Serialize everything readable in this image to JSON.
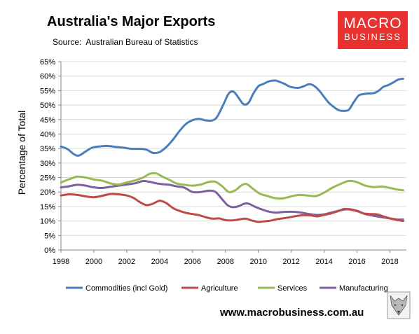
{
  "header": {
    "title": "Australia's Major Exports",
    "source_label": "Source:",
    "source_value": "Australian Bureau of Statistics"
  },
  "logo": {
    "line1": "MACRO",
    "line2": "BUSINESS",
    "color": "#e8322f"
  },
  "footer": {
    "url": "www.macrobusiness.com.au"
  },
  "chart_data": {
    "type": "line",
    "ylabel": "Percentage of Total",
    "xlabel": "",
    "xlim": [
      1998,
      2019
    ],
    "ylim": [
      0,
      65
    ],
    "y_ticks": [
      "0%",
      "5%",
      "10%",
      "15%",
      "20%",
      "25%",
      "30%",
      "35%",
      "40%",
      "45%",
      "50%",
      "55%",
      "60%",
      "65%"
    ],
    "x_ticks": [
      "1998",
      "2000",
      "2002",
      "2004",
      "2006",
      "2008",
      "2010",
      "2012",
      "2014",
      "2016",
      "2018"
    ],
    "grid": "horizontal",
    "legend_position": "bottom",
    "series": [
      {
        "name": "Commodities (incl Gold)",
        "color": "#4a7ebb",
        "x": [
          1998.0,
          1998.4,
          1998.8,
          1999.1,
          1999.5,
          1999.9,
          2000.3,
          2000.8,
          2001.3,
          2001.8,
          2002.3,
          2002.8,
          2003.2,
          2003.6,
          2004.0,
          2004.4,
          2004.8,
          2005.2,
          2005.6,
          2006.0,
          2006.4,
          2006.8,
          2007.2,
          2007.5,
          2007.9,
          2008.2,
          2008.5,
          2008.8,
          2009.1,
          2009.4,
          2009.7,
          2010.0,
          2010.3,
          2010.6,
          2011.0,
          2011.3,
          2011.6,
          2011.9,
          2012.2,
          2012.5,
          2012.8,
          2013.1,
          2013.4,
          2013.7,
          2014.0,
          2014.3,
          2014.6,
          2014.9,
          2015.2,
          2015.5,
          2015.8,
          2016.1,
          2016.4,
          2016.7,
          2017.0,
          2017.3,
          2017.6,
          2017.9,
          2018.2,
          2018.5,
          2018.8
        ],
        "values": [
          35.7,
          34.8,
          33.0,
          32.6,
          34.0,
          35.3,
          35.7,
          35.9,
          35.6,
          35.3,
          34.9,
          34.9,
          34.6,
          33.5,
          33.8,
          35.5,
          38.0,
          41.0,
          43.5,
          44.8,
          45.2,
          44.7,
          44.7,
          46.0,
          50.5,
          54.0,
          54.6,
          52.5,
          50.3,
          50.8,
          54.0,
          56.5,
          57.3,
          58.1,
          58.5,
          58.0,
          57.3,
          56.4,
          56.0,
          56.0,
          56.6,
          57.2,
          56.6,
          55.0,
          52.8,
          50.7,
          49.3,
          48.2,
          48.0,
          48.4,
          51.0,
          53.3,
          53.8,
          54.0,
          54.1,
          54.9,
          56.3,
          56.9,
          57.8,
          58.8,
          59.1
        ]
      },
      {
        "name": "Agriculture",
        "color": "#be4b48",
        "x": [
          1998.0,
          1998.5,
          1999.0,
          1999.5,
          2000.0,
          2000.5,
          2001.0,
          2001.5,
          2002.0,
          2002.4,
          2002.8,
          2003.2,
          2003.6,
          2004.0,
          2004.4,
          2004.8,
          2005.2,
          2005.6,
          2006.0,
          2006.4,
          2006.8,
          2007.2,
          2007.6,
          2008.0,
          2008.4,
          2008.8,
          2009.2,
          2009.6,
          2010.0,
          2010.4,
          2010.8,
          2011.2,
          2011.6,
          2012.0,
          2012.4,
          2012.8,
          2013.2,
          2013.6,
          2014.0,
          2014.4,
          2014.8,
          2015.2,
          2015.6,
          2016.0,
          2016.4,
          2016.8,
          2017.2,
          2017.6,
          2018.0,
          2018.4,
          2018.8
        ],
        "values": [
          18.8,
          19.2,
          19.0,
          18.5,
          18.2,
          18.7,
          19.3,
          19.2,
          18.8,
          18.0,
          16.5,
          15.5,
          16.0,
          17.0,
          16.2,
          14.5,
          13.5,
          12.8,
          12.4,
          12.0,
          11.3,
          10.8,
          10.9,
          10.3,
          10.2,
          10.5,
          10.8,
          10.2,
          9.7,
          9.9,
          10.2,
          10.7,
          11.0,
          11.4,
          11.8,
          12.0,
          11.9,
          11.6,
          12.1,
          12.6,
          13.3,
          14.1,
          13.9,
          13.4,
          12.6,
          12.4,
          12.3,
          11.6,
          10.9,
          10.4,
          10.0
        ]
      },
      {
        "name": "Services",
        "color": "#98b954",
        "x": [
          1998.0,
          1998.5,
          1999.0,
          1999.5,
          2000.0,
          2000.5,
          2001.0,
          2001.5,
          2002.0,
          2002.5,
          2003.0,
          2003.4,
          2003.8,
          2004.2,
          2004.6,
          2005.0,
          2005.5,
          2006.0,
          2006.5,
          2007.0,
          2007.4,
          2007.8,
          2008.2,
          2008.6,
          2009.0,
          2009.3,
          2009.7,
          2010.1,
          2010.5,
          2011.0,
          2011.5,
          2012.0,
          2012.5,
          2013.0,
          2013.5,
          2014.0,
          2014.5,
          2015.0,
          2015.5,
          2016.0,
          2016.5,
          2017.0,
          2017.5,
          2018.0,
          2018.5,
          2018.8
        ],
        "values": [
          23.3,
          24.4,
          25.3,
          25.0,
          24.3,
          23.9,
          23.0,
          22.6,
          23.3,
          24.0,
          25.0,
          26.3,
          26.4,
          25.2,
          24.2,
          23.0,
          22.5,
          22.2,
          22.6,
          23.5,
          23.5,
          22.0,
          20.0,
          20.6,
          22.4,
          22.7,
          21.0,
          19.4,
          18.7,
          17.9,
          17.8,
          18.5,
          19.0,
          18.8,
          18.6,
          19.8,
          21.5,
          22.8,
          23.8,
          23.4,
          22.2,
          21.7,
          21.9,
          21.4,
          20.8,
          20.6
        ]
      },
      {
        "name": "Manufacturing",
        "color": "#7d60a0",
        "x": [
          1998.0,
          1998.5,
          1999.0,
          1999.5,
          2000.0,
          2000.5,
          2001.0,
          2001.5,
          2002.0,
          2002.5,
          2003.0,
          2003.4,
          2003.8,
          2004.2,
          2004.6,
          2005.0,
          2005.5,
          2006.0,
          2006.5,
          2007.0,
          2007.4,
          2007.8,
          2008.1,
          2008.4,
          2008.8,
          2009.1,
          2009.4,
          2009.8,
          2010.2,
          2010.6,
          2011.0,
          2011.5,
          2012.0,
          2012.5,
          2013.0,
          2013.5,
          2014.0,
          2014.5,
          2015.0,
          2015.5,
          2016.0,
          2016.5,
          2017.0,
          2017.5,
          2018.0,
          2018.5,
          2018.8
        ],
        "values": [
          21.6,
          22.0,
          22.5,
          22.2,
          21.6,
          21.4,
          21.8,
          22.2,
          22.6,
          23.0,
          23.8,
          23.5,
          23.0,
          22.7,
          22.5,
          22.0,
          21.5,
          20.0,
          20.0,
          20.5,
          20.0,
          17.5,
          15.6,
          14.8,
          15.1,
          15.9,
          16.0,
          14.9,
          14.0,
          13.3,
          12.9,
          13.1,
          13.2,
          13.0,
          12.5,
          12.1,
          12.3,
          13.0,
          13.7,
          14.1,
          13.5,
          12.4,
          11.8,
          11.3,
          10.9,
          10.5,
          10.5
        ]
      }
    ]
  }
}
